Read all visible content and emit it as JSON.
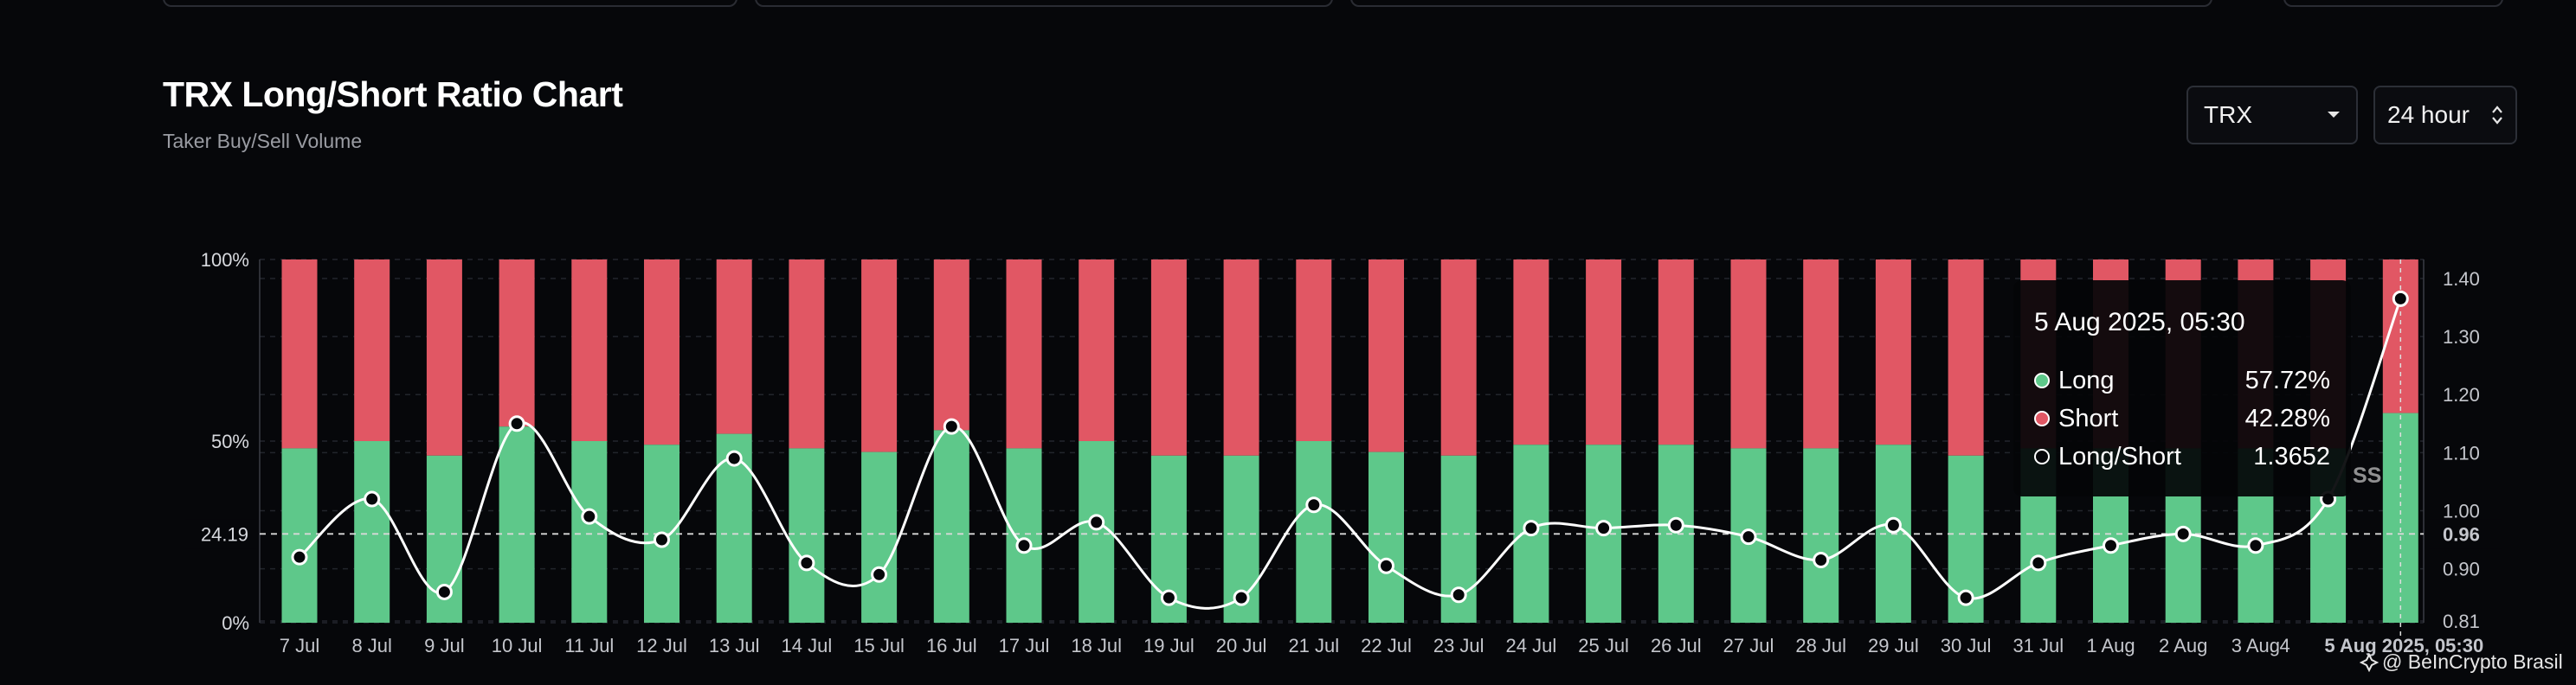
{
  "header": {
    "title": "TRX Long/Short Ratio Chart",
    "subtitle": "Taker Buy/Sell Volume"
  },
  "controls": {
    "symbol_select": {
      "value": "TRX",
      "icon": "caret-down-icon"
    },
    "period_select": {
      "value": "24 hour",
      "icon": "up-down-chevron-icon"
    }
  },
  "colors": {
    "long": "#5ec88a",
    "short": "#e15764",
    "background": "#06070a",
    "line": "#ffffff"
  },
  "tooltip": {
    "date": "5 Aug 2025, 05:30",
    "rows": [
      {
        "label": "Long",
        "value": "57.72%"
      },
      {
        "label": "Short",
        "value": "42.28%"
      },
      {
        "label": "Long/Short",
        "value": "1.3652"
      }
    ]
  },
  "watermark": "@ BeInCrypto Brasil",
  "partial_label": "SS",
  "chart_data": {
    "type": "bar",
    "categories": [
      "7 Jul",
      "8 Jul",
      "9 Jul",
      "10 Jul",
      "11 Jul",
      "12 Jul",
      "13 Jul",
      "14 Jul",
      "15 Jul",
      "16 Jul",
      "17 Jul",
      "18 Jul",
      "19 Jul",
      "20 Jul",
      "21 Jul",
      "22 Jul",
      "23 Jul",
      "24 Jul",
      "25 Jul",
      "26 Jul",
      "27 Jul",
      "28 Jul",
      "29 Jul",
      "30 Jul",
      "31 Jul",
      "1 Aug",
      "2 Aug",
      "3 Aug",
      "4 Aug",
      "5 Aug 2025, 05:30"
    ],
    "x_tick_labels": [
      "7 Jul",
      "8 Jul",
      "9 Jul",
      "10 Jul",
      "11 Jul",
      "12 Jul",
      "13 Jul",
      "14 Jul",
      "15 Jul",
      "16 Jul",
      "17 Jul",
      "18 Jul",
      "19 Jul",
      "20 Jul",
      "21 Jul",
      "22 Jul",
      "23 Jul",
      "24 Jul",
      "25 Jul",
      "26 Jul",
      "27 Jul",
      "28 Jul",
      "29 Jul",
      "30 Jul",
      "31 Jul",
      "1 Aug",
      "2 Aug",
      "3 Aug",
      "4",
      "5 Aug 2025, 05:30"
    ],
    "series": [
      {
        "name": "Long",
        "values": [
          48,
          50,
          46,
          54,
          50,
          49,
          52,
          48,
          47,
          53,
          48,
          50,
          46,
          46,
          50,
          47,
          46,
          49,
          49,
          49,
          48,
          48,
          49,
          46,
          48,
          48,
          48,
          48,
          48,
          57.72
        ]
      },
      {
        "name": "Short",
        "values": [
          52,
          50,
          54,
          46,
          50,
          51,
          48,
          52,
          53,
          47,
          52,
          50,
          54,
          54,
          50,
          53,
          54,
          51,
          51,
          51,
          52,
          52,
          51,
          54,
          52,
          52,
          52,
          52,
          52,
          42.28
        ]
      },
      {
        "name": "Long/Short",
        "values": [
          0.92,
          1.02,
          0.86,
          1.15,
          0.99,
          0.95,
          1.09,
          0.91,
          0.89,
          1.145,
          0.94,
          0.98,
          0.85,
          0.85,
          1.01,
          0.905,
          0.855,
          0.97,
          0.97,
          0.975,
          0.955,
          0.915,
          0.975,
          0.85,
          0.91,
          0.94,
          0.96,
          0.94,
          1.02,
          1.3652
        ]
      }
    ],
    "left_axis": {
      "ticks": [
        "0%",
        "50%",
        "100%"
      ],
      "ylim": [
        0,
        100
      ],
      "marker_label": "24.19"
    },
    "right_axis": {
      "ticks": [
        "0.81",
        "0.90",
        "1.00",
        "1.10",
        "1.20",
        "1.30",
        "1.40"
      ],
      "ylim": [
        0.81,
        1.4
      ],
      "marker_label": "0.96"
    },
    "grid": true
  }
}
